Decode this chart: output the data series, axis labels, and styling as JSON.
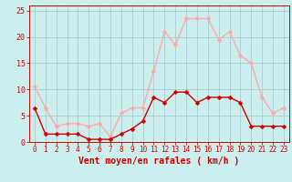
{
  "x": [
    0,
    1,
    2,
    3,
    4,
    5,
    6,
    7,
    8,
    9,
    10,
    11,
    12,
    13,
    14,
    15,
    16,
    17,
    18,
    19,
    20,
    21,
    22,
    23
  ],
  "wind_avg": [
    6.5,
    1.5,
    1.5,
    1.5,
    1.5,
    0.5,
    0.5,
    0.5,
    1.5,
    2.5,
    4.0,
    8.5,
    7.5,
    9.5,
    9.5,
    7.5,
    8.5,
    8.5,
    8.5,
    7.5,
    3.0,
    3.0,
    3.0,
    3.0
  ],
  "wind_gust": [
    10.5,
    6.5,
    3.0,
    3.5,
    3.5,
    3.0,
    3.5,
    1.0,
    5.5,
    6.5,
    6.5,
    13.5,
    21.0,
    18.5,
    23.5,
    23.5,
    23.5,
    19.5,
    21.0,
    16.5,
    15.0,
    8.5,
    5.5,
    6.5
  ],
  "color_avg": "#cc0000",
  "color_gust": "#ffaaaa",
  "bg_color": "#cceeed",
  "grid_color": "#aacccc",
  "axis_color": "#cc0000",
  "xlabel": "Vent moyen/en rafales ( km/h )",
  "ylim": [
    0,
    26
  ],
  "xlim": [
    -0.5,
    23.5
  ],
  "yticks": [
    0,
    5,
    10,
    15,
    20,
    25
  ],
  "xticks": [
    0,
    1,
    2,
    3,
    4,
    5,
    6,
    7,
    8,
    9,
    10,
    11,
    12,
    13,
    14,
    15,
    16,
    17,
    18,
    19,
    20,
    21,
    22,
    23
  ],
  "xlabel_fontsize": 7,
  "tick_fontsize": 6,
  "linewidth": 1.0,
  "markersize": 2.5
}
